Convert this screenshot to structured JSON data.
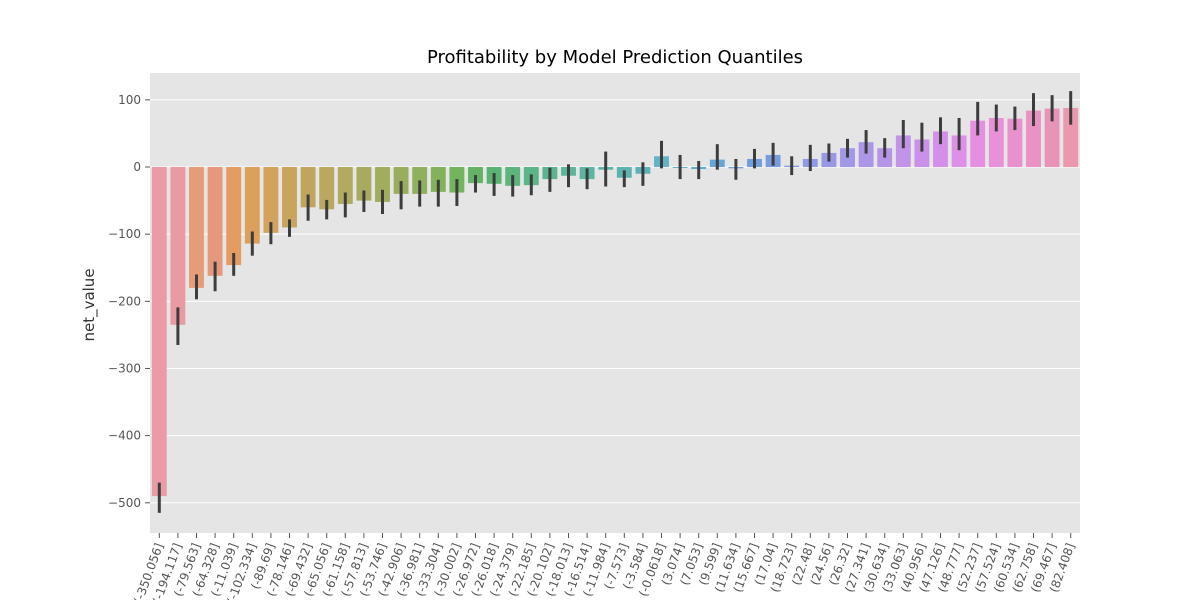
{
  "chart_data": {
    "type": "bar",
    "title": "Profitability by Model Prediction Quantiles",
    "xlabel": "",
    "ylabel": "net_value",
    "ylim": [
      -545,
      140
    ],
    "yticks": [
      -500,
      -400,
      -300,
      -200,
      -100,
      0,
      100
    ],
    "grid": true,
    "categories": [
      "(-350.056]",
      "(-194.117]",
      "(-79.563]",
      "(-64.328]",
      "(-11.039]",
      "(-102.334]",
      "(-89.69]",
      "(-78.146]",
      "(-69.432]",
      "(-65.056]",
      "(-61.158]",
      "(-57.813]",
      "(-53.746]",
      "(-42.906]",
      "(-36.981]",
      "(-33.304]",
      "(-30.002]",
      "(-26.972]",
      "(-26.018]",
      "(-24.379]",
      "(-22.185]",
      "(-20.102]",
      "(-18.013]",
      "(-16.514]",
      "(-11.984]",
      "(-7.573]",
      "(-3.584]",
      "(-0.0618]",
      "(3.074]",
      "(7.053]",
      "(9.599]",
      "(11.634]",
      "(15.667]",
      "(17.04]",
      "(18.723]",
      "(22.48]",
      "(24.56]",
      "(26.32]",
      "(27.341]",
      "(30.634]",
      "(33.063]",
      "(40.956]",
      "(47.126]",
      "(48.777]",
      "(52.237]",
      "(57.524]",
      "(60.534]",
      "(62.758]",
      "(69.467]",
      "(82.408]"
    ],
    "values": [
      -490,
      -235,
      -180,
      -162,
      -146,
      -114,
      -98,
      -90,
      -60,
      -63,
      -55,
      -50,
      -52,
      -40,
      -40,
      -37,
      -38,
      -24,
      -25,
      -28,
      -27,
      -18,
      -13,
      -18,
      -4,
      -16,
      -10,
      16,
      0,
      -3,
      11,
      -2,
      12,
      18,
      2,
      12,
      21,
      28,
      37,
      28,
      47,
      41,
      53,
      47,
      69,
      73,
      72,
      84,
      87,
      88
    ],
    "err_low": [
      -515,
      -265,
      -197,
      -185,
      -162,
      -132,
      -115,
      -104,
      -80,
      -78,
      -75,
      -67,
      -70,
      -63,
      -59,
      -59,
      -58,
      -38,
      -43,
      -44,
      -42,
      -37,
      -30,
      -33,
      -29,
      -30,
      -28,
      -2,
      -18,
      -18,
      -4,
      -19,
      -2,
      2,
      -12,
      -6,
      8,
      14,
      20,
      14,
      28,
      23,
      34,
      25,
      47,
      53,
      55,
      61,
      68,
      63
    ],
    "err_high": [
      -470,
      -209,
      -160,
      -141,
      -128,
      -96,
      -82,
      -78,
      -41,
      -49,
      -38,
      -35,
      -34,
      -21,
      -20,
      -19,
      -18,
      -12,
      -9,
      -12,
      -11,
      -1,
      4,
      -2,
      23,
      -5,
      7,
      39,
      18,
      9,
      34,
      12,
      27,
      36,
      16,
      33,
      35,
      42,
      55,
      43,
      70,
      66,
      74,
      73,
      97,
      93,
      90,
      110,
      107,
      113
    ],
    "colors": [
      "#ea9ba5",
      "#ea9aa2",
      "#e69c77",
      "#e6987a",
      "#e59c62",
      "#dba15a",
      "#d3a35d",
      "#c9a45c",
      "#c0a55c",
      "#b9a85d",
      "#b2aa5d",
      "#a8ab5d",
      "#a0ad5c",
      "#98ae5c",
      "#8fb05c",
      "#84b25c",
      "#73b45c",
      "#62b363",
      "#5ab471",
      "#5cb57c",
      "#5bb587",
      "#5bb490",
      "#5cb598",
      "#5bb5a1",
      "#5bb3a9",
      "#5cb3b1",
      "#5db2ba",
      "#63b2c5",
      "#62afce",
      "#61aad4",
      "#65a6d8",
      "#6aa2dc",
      "#709fde",
      "#789cdf",
      "#849ce4",
      "#8e9ae6",
      "#9998e7",
      "#a398e7",
      "#ac96e8",
      "#b694e7",
      "#c193e9",
      "#ca91e8",
      "#d48fe8",
      "#de8fe8",
      "#e68fe2",
      "#e890d8",
      "#e991cf",
      "#eb92c4",
      "#ea93b9",
      "#eb98ae"
    ]
  }
}
